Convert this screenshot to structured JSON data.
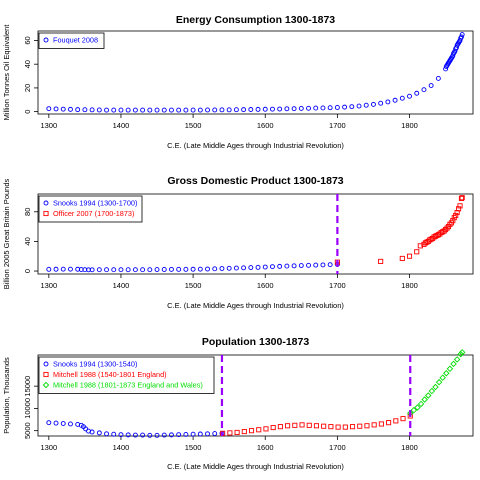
{
  "chart_data": [
    {
      "type": "scatter",
      "title": "Energy Consumption 1300-1873",
      "xlabel": "C.E. (Late Middle Ages through Industrial Revolution)",
      "ylabel": "Million Tonnes Oil Equivalent",
      "xlim": [
        1285,
        1888
      ],
      "ylim": [
        -2,
        68
      ],
      "xticks": [
        1300,
        1400,
        1500,
        1600,
        1700,
        1800
      ],
      "yticks": [
        0,
        20,
        40,
        60
      ],
      "legend_position": "top-left",
      "vlines": [],
      "series": [
        {
          "name": "Fouquet 2008",
          "marker": "circle",
          "color": "#0000ff",
          "x": [
            1300,
            1310,
            1320,
            1330,
            1340,
            1350,
            1360,
            1370,
            1380,
            1390,
            1400,
            1410,
            1420,
            1430,
            1440,
            1450,
            1460,
            1470,
            1480,
            1490,
            1500,
            1510,
            1520,
            1530,
            1540,
            1550,
            1560,
            1570,
            1580,
            1590,
            1600,
            1610,
            1620,
            1630,
            1640,
            1650,
            1660,
            1670,
            1680,
            1690,
            1700,
            1710,
            1720,
            1730,
            1740,
            1750,
            1760,
            1770,
            1780,
            1790,
            1800,
            1810,
            1820,
            1830,
            1840,
            1850,
            1851,
            1852,
            1853,
            1854,
            1855,
            1856,
            1857,
            1858,
            1859,
            1860,
            1861,
            1862,
            1863,
            1864,
            1865,
            1866,
            1867,
            1868,
            1869,
            1870,
            1871,
            1872,
            1873
          ],
          "y": [
            2.5,
            2.3,
            2.1,
            1.9,
            1.7,
            1.6,
            1.5,
            1.4,
            1.3,
            1.3,
            1.3,
            1.3,
            1.3,
            1.3,
            1.3,
            1.3,
            1.3,
            1.3,
            1.3,
            1.3,
            1.3,
            1.3,
            1.4,
            1.4,
            1.5,
            1.5,
            1.6,
            1.7,
            1.8,
            1.9,
            2.0,
            2.1,
            2.2,
            2.4,
            2.5,
            2.7,
            2.8,
            3.0,
            3.1,
            3.3,
            3.5,
            3.8,
            4.2,
            4.7,
            5.4,
            6.1,
            7.1,
            8.2,
            9.6,
            11.3,
            13.0,
            15.5,
            18.5,
            22.0,
            28.0,
            36.0,
            38.0,
            39.0,
            40.0,
            41.0,
            42.0,
            43.0,
            44.0,
            45.0,
            46.0,
            47.0,
            49.0,
            50.0,
            51.0,
            53.0,
            54.0,
            56.0,
            57.0,
            58.0,
            59.0,
            60.0,
            62.0,
            63.0,
            65.0
          ]
        }
      ]
    },
    {
      "type": "scatter",
      "title": "Gross Domestic Product 1300-1873",
      "xlabel": "C.E. (Late Middle Ages through Industrial Revolution)",
      "ylabel": "Billion 2005 Great Britain Pounds",
      "xlim": [
        1285,
        1888
      ],
      "ylim": [
        -4,
        104
      ],
      "xticks": [
        1300,
        1400,
        1500,
        1600,
        1700,
        1800
      ],
      "yticks": [
        0,
        40,
        80
      ],
      "legend_position": "top-left",
      "vlines": [
        1700
      ],
      "series": [
        {
          "name": "Snooks 1994 (1300-1700)",
          "marker": "circle",
          "color": "#0000ff",
          "x": [
            1300,
            1310,
            1320,
            1330,
            1340,
            1345,
            1350,
            1355,
            1360,
            1370,
            1380,
            1390,
            1400,
            1410,
            1420,
            1430,
            1440,
            1450,
            1460,
            1470,
            1480,
            1490,
            1500,
            1510,
            1520,
            1530,
            1540,
            1550,
            1560,
            1570,
            1580,
            1590,
            1600,
            1610,
            1620,
            1630,
            1640,
            1650,
            1660,
            1670,
            1680,
            1690,
            1700
          ],
          "y": [
            2.3,
            2.4,
            2.5,
            2.5,
            2.4,
            2.0,
            1.8,
            1.7,
            1.7,
            1.8,
            1.8,
            1.8,
            1.8,
            1.8,
            1.8,
            1.8,
            1.8,
            2.0,
            2.1,
            2.2,
            2.3,
            2.3,
            2.4,
            2.5,
            2.7,
            3.0,
            3.4,
            3.7,
            4.0,
            4.3,
            4.7,
            5.0,
            5.4,
            5.9,
            6.3,
            6.7,
            7.0,
            7.4,
            7.7,
            8.0,
            8.3,
            8.6,
            9.0
          ]
        },
        {
          "name": "Officer 2007 (1700-1873)",
          "marker": "square",
          "color": "#ff0000",
          "x": [
            1700,
            1760,
            1790,
            1800,
            1810,
            1815,
            1820,
            1822,
            1824,
            1826,
            1828,
            1830,
            1832,
            1834,
            1836,
            1838,
            1840,
            1842,
            1844,
            1846,
            1848,
            1850,
            1852,
            1854,
            1856,
            1858,
            1860,
            1862,
            1864,
            1866,
            1868,
            1870,
            1872,
            1873
          ],
          "y": [
            12,
            13,
            17,
            20,
            26,
            34,
            36,
            38,
            39,
            40,
            42,
            43,
            44,
            46,
            47,
            48,
            49,
            50,
            52,
            53,
            54,
            56,
            58,
            60,
            63,
            65,
            68,
            72,
            75,
            79,
            84,
            88,
            98,
            99
          ]
        }
      ]
    },
    {
      "type": "scatter",
      "title": "Population 1300-1873",
      "xlabel": "C.E. (Late Middle Ages through Industrial Revolution)",
      "ylabel": "Population, Thousands",
      "xlim": [
        1285,
        1888
      ],
      "ylim": [
        3800,
        22000
      ],
      "xticks": [
        1300,
        1400,
        1500,
        1600,
        1700,
        1800
      ],
      "yticks": [
        5000,
        10000,
        15000
      ],
      "legend_position": "top-left",
      "vlines": [
        1540,
        1801
      ],
      "series": [
        {
          "name": "Snooks 1994 (1300-1540)",
          "marker": "circle",
          "color": "#0000ff",
          "x": [
            1300,
            1310,
            1320,
            1330,
            1340,
            1345,
            1348,
            1351,
            1355,
            1360,
            1370,
            1380,
            1390,
            1400,
            1410,
            1420,
            1430,
            1440,
            1450,
            1460,
            1470,
            1480,
            1490,
            1500,
            1510,
            1520,
            1530,
            1540
          ],
          "y": [
            6800,
            6700,
            6600,
            6500,
            6400,
            6200,
            5900,
            5400,
            4900,
            4700,
            4500,
            4300,
            4200,
            4100,
            4050,
            4000,
            4000,
            3950,
            3950,
            4000,
            4050,
            4100,
            4150,
            4200,
            4250,
            4300,
            4350,
            4400
          ]
        },
        {
          "name": "Mitchell 1988 (1540-1801 England)",
          "marker": "square",
          "color": "#ff0000",
          "x": [
            1541,
            1551,
            1561,
            1571,
            1581,
            1591,
            1601,
            1611,
            1621,
            1631,
            1641,
            1651,
            1661,
            1671,
            1681,
            1691,
            1701,
            1711,
            1721,
            1731,
            1741,
            1751,
            1761,
            1771,
            1781,
            1791,
            1801
          ],
          "y": [
            4400,
            4500,
            4600,
            4800,
            5000,
            5200,
            5400,
            5700,
            5900,
            6100,
            6200,
            6300,
            6200,
            6100,
            6000,
            5900,
            5800,
            5800,
            5900,
            6000,
            6100,
            6300,
            6500,
            6800,
            7200,
            7700,
            8300
          ]
        },
        {
          "name": "Mitchell 1988 (1801-1873 England and Wales)",
          "marker": "diamond",
          "color": "#00dd00",
          "x": [
            1801,
            1806,
            1811,
            1816,
            1821,
            1826,
            1831,
            1836,
            1841,
            1846,
            1851,
            1856,
            1861,
            1866,
            1871,
            1873
          ],
          "y": [
            8900,
            9600,
            10200,
            11000,
            12000,
            12900,
            13900,
            14800,
            15900,
            16900,
            17900,
            18900,
            20000,
            21000,
            22200,
            22600
          ]
        }
      ]
    }
  ]
}
